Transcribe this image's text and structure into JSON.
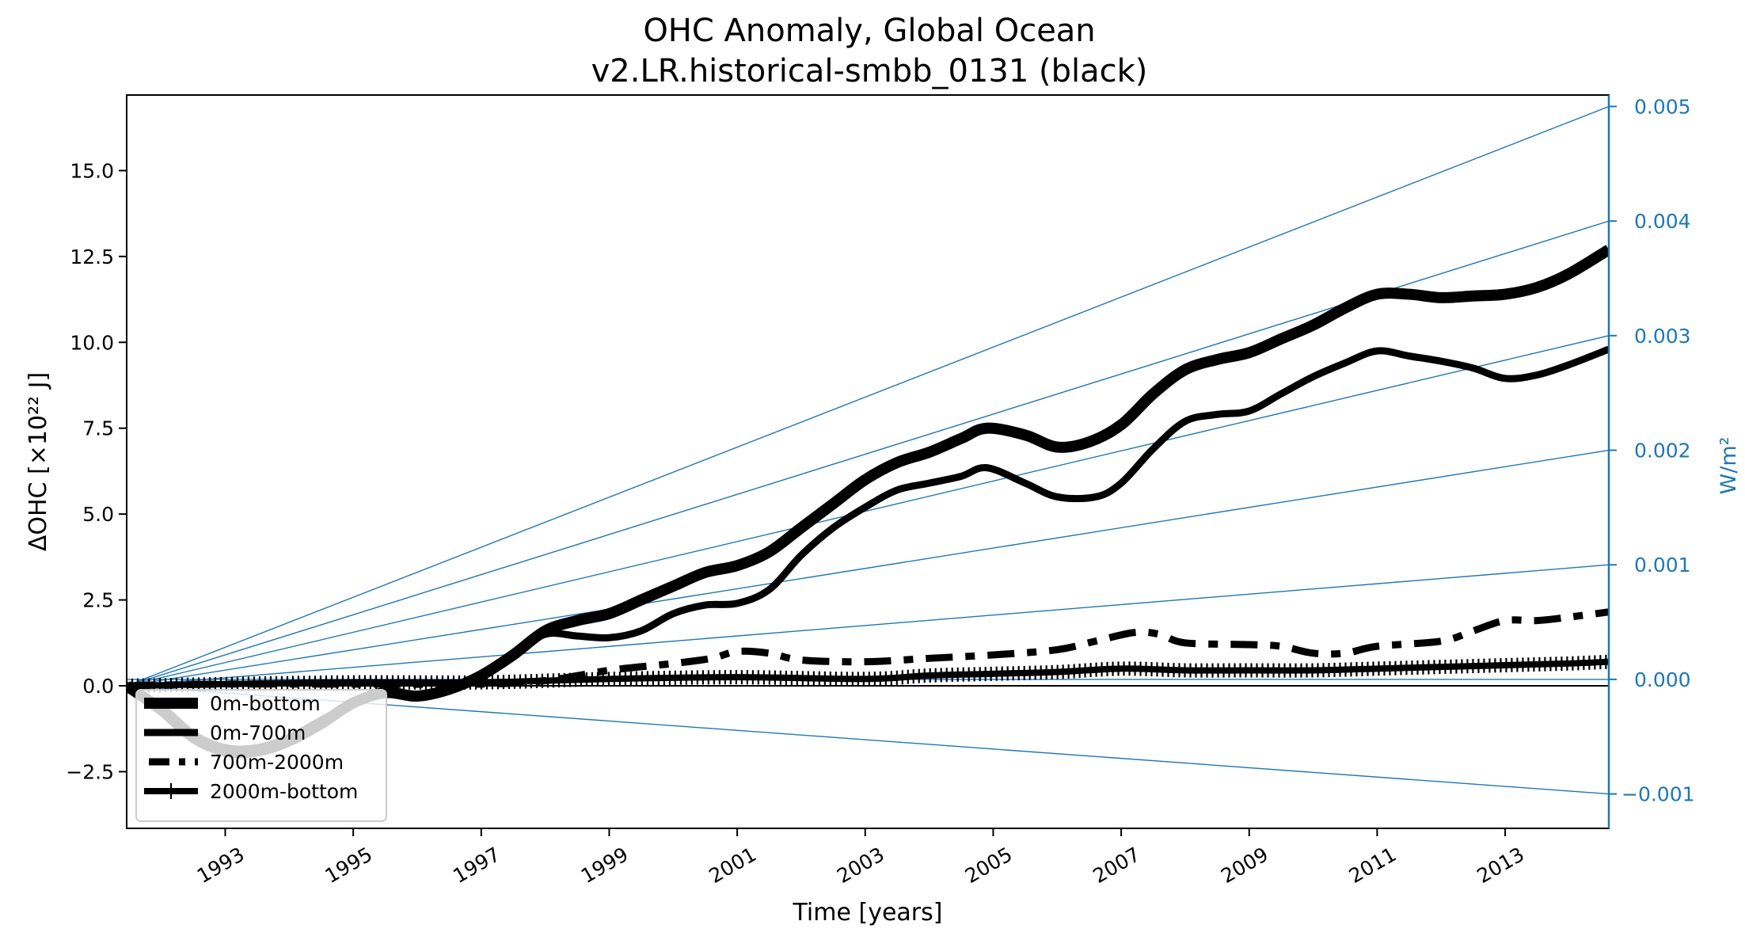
{
  "chart_data": {
    "type": "line",
    "title": "OHC Anomaly, Global Ocean",
    "subtitle": "v2.LR.historical-smbb_0131 (black)",
    "xlabel": "Time [years]",
    "ylabel": "ΔOHC [×10²² J]",
    "ylabel_right": "W/m²",
    "xlim": [
      1991.46,
      2014.62
    ],
    "ylim": [
      -4.15,
      17.2
    ],
    "ylim_right": [
      -0.0013,
      0.0051
    ],
    "grid": false,
    "legend_position": "lower-left",
    "x_ticks": [
      "1993",
      "1995",
      "1997",
      "1999",
      "2001",
      "2003",
      "2005",
      "2007",
      "2009",
      "2011",
      "2013"
    ],
    "x_tick_values": [
      1993,
      1995,
      1997,
      1999,
      2001,
      2003,
      2005,
      2007,
      2009,
      2011,
      2013
    ],
    "y_ticks": [
      "−2.5",
      "0.0",
      "2.5",
      "5.0",
      "7.5",
      "10.0",
      "12.5",
      "15.0"
    ],
    "y_tick_values": [
      -2.5,
      0,
      2.5,
      5,
      7.5,
      10,
      12.5,
      15
    ],
    "y_ticks_right": [
      "−0.001",
      "0.000",
      "0.001",
      "0.002",
      "0.003",
      "0.004",
      "0.005"
    ],
    "y_tick_values_right": [
      -0.001,
      0,
      0.001,
      0.002,
      0.003,
      0.004,
      0.005
    ],
    "reference_rates_wm2": [
      -0.001,
      0.001,
      0.002,
      0.003,
      0.004,
      0.005
    ],
    "reference_color": "#1f77b4",
    "series": [
      {
        "name": "0m-bottom",
        "style": "thick-solid",
        "color": "#000000",
        "x": [
          1991.46,
          1992,
          1992.5,
          1993,
          1993.5,
          1994,
          1994.5,
          1995,
          1995.5,
          1996,
          1996.5,
          1997,
          1997.5,
          1998,
          1998.5,
          1999,
          1999.5,
          2000,
          2000.5,
          2001,
          2001.5,
          2002,
          2002.5,
          2003,
          2003.5,
          2004,
          2004.5,
          2004.9,
          2005.5,
          2006,
          2006.5,
          2007,
          2007.5,
          2008,
          2008.5,
          2009,
          2009.5,
          2010,
          2010.5,
          2011,
          2011.5,
          2012,
          2012.5,
          2013,
          2013.5,
          2014,
          2014.62
        ],
        "values": [
          0,
          -0.7,
          -1.5,
          -1.9,
          -1.9,
          -1.6,
          -1.1,
          -0.5,
          -0.2,
          -0.3,
          -0.1,
          0.3,
          0.9,
          1.6,
          1.9,
          2.1,
          2.5,
          2.9,
          3.3,
          3.5,
          3.9,
          4.6,
          5.3,
          6.0,
          6.5,
          6.8,
          7.2,
          7.5,
          7.3,
          6.95,
          7.1,
          7.6,
          8.5,
          9.2,
          9.5,
          9.7,
          10.1,
          10.5,
          11.0,
          11.4,
          11.4,
          11.3,
          11.35,
          11.4,
          11.6,
          12.0,
          12.7
        ]
      },
      {
        "name": "0m-700m",
        "style": "solid",
        "color": "#000000",
        "x": [
          1991.46,
          1992,
          1992.5,
          1993,
          1993.5,
          1994,
          1994.5,
          1995,
          1995.5,
          1996,
          1996.5,
          1997,
          1997.5,
          1998,
          1998.5,
          1999,
          1999.5,
          2000,
          2000.5,
          2001,
          2001.5,
          2002,
          2002.5,
          2003,
          2003.5,
          2004,
          2004.5,
          2004.9,
          2005.5,
          2006,
          2006.6,
          2007,
          2007.5,
          2008,
          2008.5,
          2009,
          2009.5,
          2010,
          2010.5,
          2011,
          2011.5,
          2012,
          2012.5,
          2013,
          2013.5,
          2014,
          2014.62
        ],
        "values": [
          0,
          -0.6,
          -1.4,
          -1.8,
          -1.8,
          -1.5,
          -1.0,
          -0.5,
          -0.2,
          -0.3,
          -0.1,
          0.3,
          0.9,
          1.5,
          1.45,
          1.4,
          1.6,
          2.1,
          2.35,
          2.4,
          2.8,
          3.8,
          4.6,
          5.2,
          5.7,
          5.9,
          6.1,
          6.35,
          5.9,
          5.5,
          5.5,
          5.9,
          6.9,
          7.7,
          7.9,
          8.0,
          8.5,
          9.0,
          9.4,
          9.75,
          9.6,
          9.45,
          9.25,
          8.95,
          9.05,
          9.35,
          9.8
        ]
      },
      {
        "name": "700m-2000m",
        "style": "dash-dot",
        "color": "#000000",
        "x": [
          1991.46,
          1993,
          1995,
          1997,
          1998,
          1999,
          2000,
          2000.6,
          2001,
          2001.5,
          2002,
          2003,
          2004,
          2005,
          2006,
          2006.6,
          2007.2,
          2007.6,
          2008,
          2009,
          2009.5,
          2010,
          2010.5,
          2011,
          2012,
          2012.5,
          2013,
          2013.5,
          2014,
          2014.62
        ],
        "values": [
          0,
          0.05,
          0.05,
          0.05,
          0.15,
          0.45,
          0.65,
          0.8,
          1.0,
          0.95,
          0.75,
          0.7,
          0.8,
          0.9,
          1.05,
          1.3,
          1.55,
          1.5,
          1.25,
          1.2,
          1.15,
          0.95,
          0.95,
          1.15,
          1.3,
          1.6,
          1.9,
          1.9,
          2.0,
          2.15
        ]
      },
      {
        "name": "2000m-bottom",
        "style": "solid-plus-markers",
        "color": "#000000",
        "x": [
          1991.46,
          1993,
          1995,
          1997,
          1999,
          2001,
          2003,
          2004,
          2005,
          2006,
          2007,
          2008,
          2009,
          2010,
          2011,
          2012,
          2013,
          2014,
          2014.62
        ],
        "values": [
          0,
          0.05,
          0.1,
          0.1,
          0.2,
          0.25,
          0.2,
          0.3,
          0.35,
          0.4,
          0.5,
          0.45,
          0.45,
          0.45,
          0.5,
          0.55,
          0.6,
          0.65,
          0.7
        ]
      }
    ]
  }
}
